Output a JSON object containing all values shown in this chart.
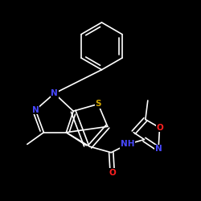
{
  "background_color": "#000000",
  "bond_color": "#ffffff",
  "atom_colors": {
    "N": "#4848ff",
    "S": "#d4a800",
    "O": "#ff2020",
    "C": "#ffffff",
    "H": "#ffffff"
  },
  "figsize": [
    2.5,
    2.5
  ],
  "dpi": 100,
  "lw": 1.2,
  "fontsize": 7.5
}
